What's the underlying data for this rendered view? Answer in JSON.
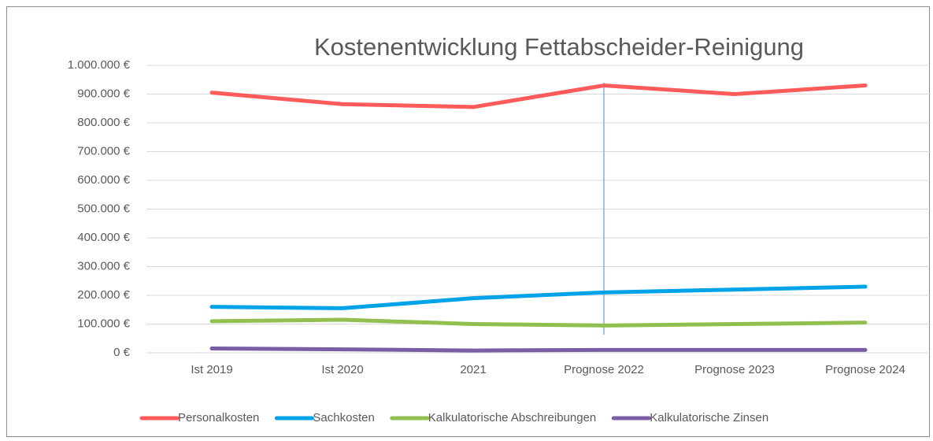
{
  "chart_data": {
    "type": "line",
    "title": "Kostenentwicklung Fettabscheider-Reinigung",
    "categories": [
      "Ist 2019",
      "Ist 2020",
      "2021",
      "Prognose 2022",
      "Prognose 2023",
      "Prognose 2024"
    ],
    "series": [
      {
        "name": "Personalkosten",
        "color": "#ff5b5b",
        "values": [
          905000,
          865000,
          855000,
          930000,
          900000,
          930000
        ]
      },
      {
        "name": "Sachkosten",
        "color": "#00a2e8",
        "values": [
          160000,
          155000,
          190000,
          210000,
          220000,
          230000
        ]
      },
      {
        "name": "Kalkulatorische Abschreibungen",
        "color": "#92c050",
        "values": [
          110000,
          115000,
          100000,
          95000,
          100000,
          105000
        ]
      },
      {
        "name": "Kalkulatorische Zinsen",
        "color": "#7b5ea7",
        "values": [
          15000,
          12000,
          8000,
          10000,
          10000,
          10000
        ]
      }
    ],
    "ylim": [
      0,
      1000000
    ],
    "yticks": [
      {
        "value": 0,
        "label": "0 €"
      },
      {
        "value": 100000,
        "label": "100.000 €"
      },
      {
        "value": 200000,
        "label": "200.000 €"
      },
      {
        "value": 300000,
        "label": "300.000 €"
      },
      {
        "value": 400000,
        "label": "400.000 €"
      },
      {
        "value": 500000,
        "label": "500.000 €"
      },
      {
        "value": 600000,
        "label": "600.000 €"
      },
      {
        "value": 700000,
        "label": "700.000 €"
      },
      {
        "value": 800000,
        "label": "800.000 €"
      },
      {
        "value": 900000,
        "label": "900.000 €"
      },
      {
        "value": 1000000,
        "label": "1.000.000 €"
      }
    ],
    "grid": true,
    "legend": "bottom"
  }
}
